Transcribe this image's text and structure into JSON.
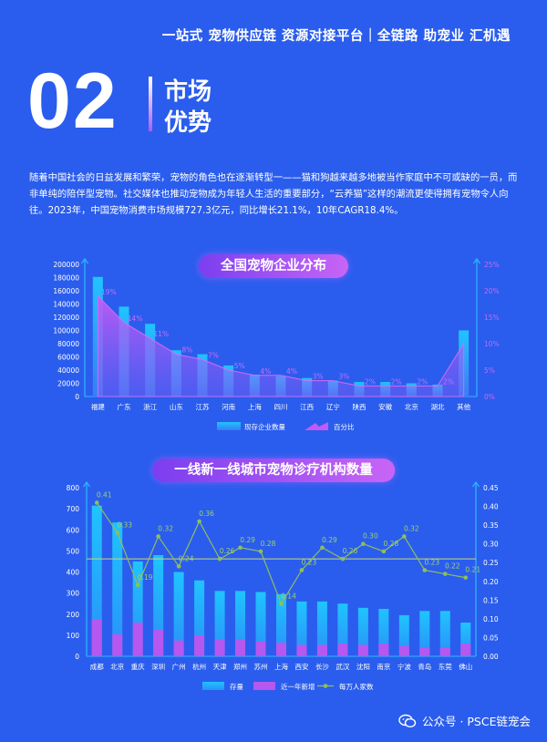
{
  "header": {
    "slogan": "一站式 宠物供应链 资源对接平台｜全链路 助宠业 汇机遇",
    "section_number": "02",
    "section_line1": "市场",
    "section_line2": "优势"
  },
  "intro": "随着中国社会的日益发展和繁荣，宠物的角色也在逐渐转型一——猫和狗越来越多地被当作家庭中不可或缺的一员，而非单纯的陪伴型宠物。社交媒体也推动宠物成为年轻人生活的重要部分，“云养猫”这样的潮流更使得拥有宠物令人向往。2023年，中国宠物消费市场规模727.3亿元，同比增长21.1%，10年CAGR18.4%。",
  "watermark": "公众号 · PSCE链宠会",
  "colors": {
    "background": "#2a5ded",
    "bar_cyan": "#1ab8ff",
    "bar_purple": "#b657f0",
    "line_green": "#8fbf5a"
  },
  "chart_data": [
    {
      "type": "bar",
      "title": "全国宠物企业分布",
      "categories": [
        "福建",
        "广东",
        "浙江",
        "山东",
        "江苏",
        "河南",
        "上海",
        "四川",
        "江西",
        "辽宁",
        "陕西",
        "安徽",
        "北京",
        "湖北",
        "其他"
      ],
      "series": [
        {
          "name": "现存企业数量",
          "type": "bar",
          "axis": "left",
          "values": [
            181000,
            136000,
            110000,
            70000,
            64000,
            47000,
            33000,
            31000,
            28000,
            24000,
            22000,
            22000,
            20000,
            18000,
            100000
          ]
        },
        {
          "name": "百分比",
          "type": "area",
          "axis": "right",
          "values": [
            19,
            14,
            11,
            8,
            7,
            5,
            4,
            4,
            3,
            3,
            2,
            2,
            2,
            2,
            10
          ],
          "labels": [
            "19%",
            "14%",
            "11%",
            "8%",
            "7%",
            "5%",
            "4%",
            "4%",
            "3%",
            "3%",
            "2%",
            "2%",
            "2%",
            "2%",
            ""
          ]
        }
      ],
      "y_ticks": [
        "0",
        "20000",
        "40000",
        "60000",
        "80000",
        "100000",
        "120000",
        "140000",
        "160000",
        "180000",
        "200000"
      ],
      "y2_ticks": [
        "0%",
        "5%",
        "10%",
        "15%",
        "20%",
        "25%"
      ],
      "ylim": [
        0,
        200000
      ],
      "y2lim": [
        0,
        25
      ],
      "legend": "bottom"
    },
    {
      "type": "bar",
      "title": "一线新一线城市宠物诊疗机构数量",
      "categories": [
        "成都",
        "北京",
        "重庆",
        "深圳",
        "广州",
        "杭州",
        "天津",
        "郑州",
        "苏州",
        "上海",
        "西安",
        "长沙",
        "武汉",
        "沈阳",
        "南京",
        "宁波",
        "青岛",
        "东莞",
        "佛山"
      ],
      "series": [
        {
          "name": "存量",
          "type": "bar",
          "axis": "left",
          "values": [
            715,
            635,
            450,
            480,
            400,
            360,
            310,
            310,
            305,
            295,
            260,
            260,
            250,
            230,
            225,
            195,
            215,
            215,
            160
          ]
        },
        {
          "name": "近一年新增",
          "type": "bar",
          "axis": "left",
          "values": [
            175,
            105,
            160,
            125,
            75,
            100,
            80,
            80,
            70,
            65,
            55,
            55,
            60,
            55,
            60,
            50,
            40,
            40,
            60
          ]
        },
        {
          "name": "每万人家数",
          "type": "line",
          "axis": "right",
          "values": [
            0.41,
            0.33,
            0.19,
            0.32,
            0.24,
            0.36,
            0.26,
            0.29,
            0.28,
            0.14,
            0.23,
            0.29,
            0.26,
            0.3,
            0.28,
            0.32,
            0.23,
            0.22,
            0.21
          ],
          "labels": [
            "0.41",
            "0.33",
            "0.19",
            "0.32",
            "0.24",
            "0.36",
            "0.26",
            "0.29",
            "0.28",
            "0.14",
            "0.23",
            "0.29",
            "0.26",
            "0.30",
            "0.28",
            "0.32",
            "0.23",
            "0.22",
            "0.21"
          ]
        }
      ],
      "y_ticks": [
        "0",
        "100",
        "200",
        "300",
        "400",
        "500",
        "600",
        "700",
        "800"
      ],
      "y2_ticks": [
        "0.00",
        "0.05",
        "0.10",
        "0.15",
        "0.20",
        "0.25",
        "0.30",
        "0.35",
        "0.40",
        "0.45"
      ],
      "ylim": [
        0,
        800
      ],
      "y2lim": [
        0,
        0.45
      ],
      "reference_line": 0.26,
      "legend": "bottom"
    }
  ]
}
